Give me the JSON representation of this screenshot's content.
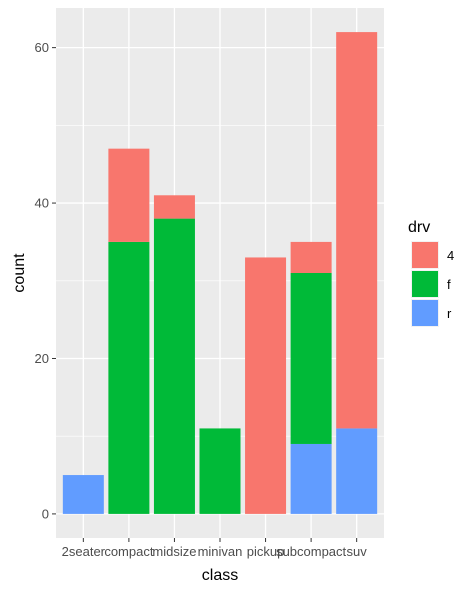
{
  "chart_data": {
    "type": "bar",
    "stacked": true,
    "title": "",
    "xlabel": "class",
    "ylabel": "count",
    "ylim": [
      0,
      62
    ],
    "yticks": [
      0,
      20,
      40,
      60
    ],
    "grid": true,
    "legend_title": "drv",
    "legend_position": "right",
    "categories": [
      "2seater",
      "compact",
      "midsize",
      "minivan",
      "pickup",
      "subcompact",
      "suv"
    ],
    "series": [
      {
        "name": "4",
        "color": "#F8766D",
        "values": [
          0,
          12,
          3,
          0,
          33,
          4,
          51
        ]
      },
      {
        "name": "f",
        "color": "#00BA38",
        "values": [
          0,
          35,
          38,
          11,
          0,
          22,
          0
        ]
      },
      {
        "name": "r",
        "color": "#619CFF",
        "values": [
          5,
          0,
          0,
          0,
          0,
          9,
          11
        ]
      }
    ],
    "panel_background": "#EBEBEB",
    "grid_color": "#FFFFFF"
  }
}
